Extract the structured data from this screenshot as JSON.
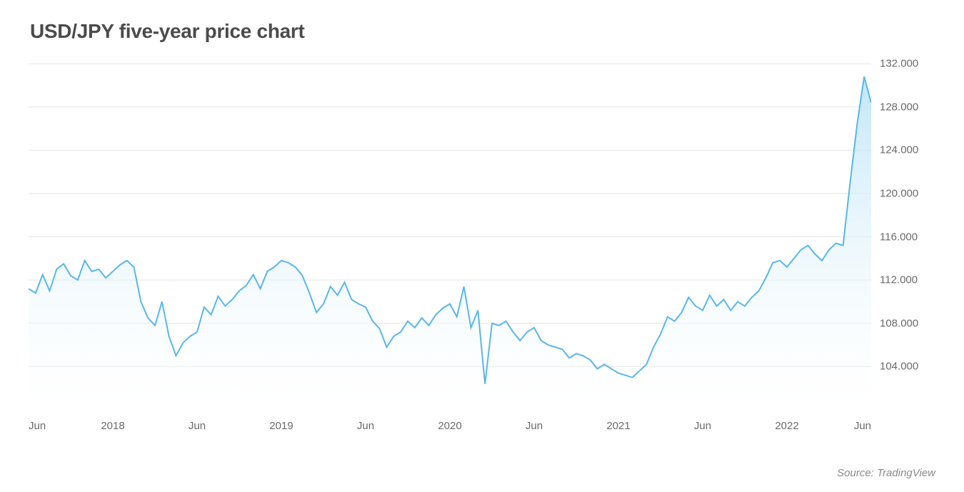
{
  "title": "USD/JPY five-year price chart",
  "source": "Source: TradingView",
  "chart": {
    "type": "area",
    "background_color": "#ffffff",
    "grid_color": "#e4e4e4",
    "line_color": "#58b7ea",
    "line_width": 2,
    "fill_top_color": "#bfe5f7",
    "fill_bottom_color": "#ffffff",
    "y_axis": {
      "side": "right",
      "min": 100,
      "max": 133,
      "ticks": [
        104,
        108,
        112,
        116,
        120,
        124,
        128,
        132
      ],
      "tick_labels": [
        "104.000",
        "108.000",
        "112.000",
        "116.000",
        "120.000",
        "124.000",
        "128.000",
        "132.000"
      ],
      "label_color": "#6a6a6a",
      "label_fontsize": 15
    },
    "x_axis": {
      "min": 0,
      "max": 60,
      "ticks": [
        0,
        6,
        12,
        18,
        24,
        30,
        36,
        42,
        48,
        54,
        60
      ],
      "tick_labels": [
        "Jun",
        "2018",
        "Jun",
        "2019",
        "Jun",
        "2020",
        "Jun",
        "2021",
        "Jun",
        "2022",
        "Jun"
      ],
      "label_color": "#6a6a6a",
      "label_fontsize": 15
    },
    "series": {
      "name": "USD/JPY",
      "x": [
        0,
        0.5,
        1,
        1.5,
        2,
        2.5,
        3,
        3.5,
        4,
        4.5,
        5,
        5.5,
        6,
        6.5,
        7,
        7.5,
        8,
        8.5,
        9,
        9.5,
        10,
        10.5,
        11,
        11.5,
        12,
        12.5,
        13,
        13.5,
        14,
        14.5,
        15,
        15.5,
        16,
        16.5,
        17,
        17.5,
        18,
        18.5,
        19,
        19.5,
        20,
        20.5,
        21,
        21.5,
        22,
        22.5,
        23,
        23.5,
        24,
        24.5,
        25,
        25.5,
        26,
        26.5,
        27,
        27.5,
        28,
        28.5,
        29,
        29.5,
        30,
        30.5,
        31,
        31.5,
        32,
        32.5,
        33,
        33.5,
        34,
        34.5,
        35,
        35.5,
        36,
        36.5,
        37,
        37.5,
        38,
        38.5,
        39,
        39.5,
        40,
        40.5,
        41,
        41.5,
        42,
        42.5,
        43,
        43.5,
        44,
        44.5,
        45,
        45.5,
        46,
        46.5,
        47,
        47.5,
        48,
        48.5,
        49,
        49.5,
        50,
        50.5,
        51,
        51.5,
        52,
        52.5,
        53,
        53.5,
        54,
        54.5,
        55,
        55.5,
        56,
        56.5,
        57,
        57.5,
        58,
        58.5,
        59,
        59.5,
        60
      ],
      "y": [
        111.2,
        110.8,
        112.5,
        111.0,
        113.0,
        113.5,
        112.4,
        112.0,
        113.8,
        112.8,
        113.0,
        112.2,
        112.8,
        113.4,
        113.8,
        113.2,
        110.0,
        108.5,
        107.8,
        110.0,
        106.8,
        105.0,
        106.2,
        106.8,
        107.2,
        109.5,
        108.8,
        110.5,
        109.6,
        110.2,
        111.0,
        111.5,
        112.5,
        111.2,
        112.8,
        113.2,
        113.8,
        113.6,
        113.2,
        112.4,
        110.8,
        109.0,
        109.8,
        111.4,
        110.6,
        111.8,
        110.2,
        109.8,
        109.5,
        108.2,
        107.5,
        105.8,
        106.8,
        107.2,
        108.2,
        107.6,
        108.5,
        107.8,
        108.8,
        109.4,
        109.8,
        108.6,
        111.4,
        107.6,
        109.2,
        102.4,
        108.0,
        107.8,
        108.2,
        107.2,
        106.4,
        107.2,
        107.6,
        106.4,
        106.0,
        105.8,
        105.6,
        104.8,
        105.2,
        105.0,
        104.6,
        103.8,
        104.2,
        103.8,
        103.4,
        103.2,
        103.0,
        103.6,
        104.2,
        105.8,
        107.0,
        108.6,
        108.2,
        109.0,
        110.4,
        109.6,
        109.2,
        110.6,
        109.6,
        110.2,
        109.2,
        110.0,
        109.6,
        110.4,
        111.0,
        112.2,
        113.6,
        113.8,
        113.2,
        114.0,
        114.8,
        115.2,
        114.4,
        113.8,
        114.8,
        115.4,
        115.2,
        121.0,
        126.4,
        130.8,
        128.4
      ]
    }
  }
}
